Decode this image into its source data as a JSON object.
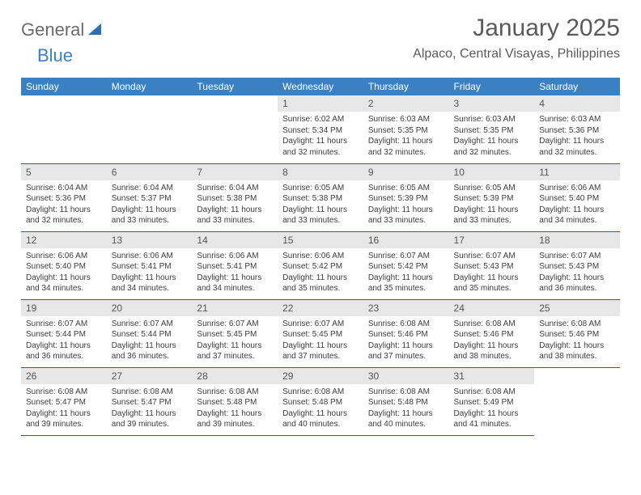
{
  "brand": {
    "part1": "General",
    "part2": "Blue"
  },
  "title": "January 2025",
  "location": "Alpaco, Central Visayas, Philippines",
  "colors": {
    "header_bg": "#3a81c4",
    "header_text": "#ffffff",
    "daynum_bg": "#e7e7e7",
    "daynum_text": "#555555",
    "body_text": "#3c3c3c",
    "row_border": "#2f5f8f",
    "logo_gray": "#6a6a6a",
    "logo_blue": "#3a81c4",
    "title_color": "#5a5a5a",
    "background": "#ffffff"
  },
  "typography": {
    "month_title_fontsize": 30,
    "location_fontsize": 16,
    "dayheader_fontsize": 12,
    "daynum_fontsize": 12,
    "cell_fontsize": 10
  },
  "table": {
    "type": "calendar",
    "columns": [
      "Sunday",
      "Monday",
      "Tuesday",
      "Wednesday",
      "Thursday",
      "Friday",
      "Saturday"
    ],
    "leading_blank_cells": 3,
    "days": [
      {
        "n": "1",
        "sunrise": "6:02 AM",
        "sunset": "5:34 PM",
        "daylight": "11 hours and 32 minutes."
      },
      {
        "n": "2",
        "sunrise": "6:03 AM",
        "sunset": "5:35 PM",
        "daylight": "11 hours and 32 minutes."
      },
      {
        "n": "3",
        "sunrise": "6:03 AM",
        "sunset": "5:35 PM",
        "daylight": "11 hours and 32 minutes."
      },
      {
        "n": "4",
        "sunrise": "6:03 AM",
        "sunset": "5:36 PM",
        "daylight": "11 hours and 32 minutes."
      },
      {
        "n": "5",
        "sunrise": "6:04 AM",
        "sunset": "5:36 PM",
        "daylight": "11 hours and 32 minutes."
      },
      {
        "n": "6",
        "sunrise": "6:04 AM",
        "sunset": "5:37 PM",
        "daylight": "11 hours and 33 minutes."
      },
      {
        "n": "7",
        "sunrise": "6:04 AM",
        "sunset": "5:38 PM",
        "daylight": "11 hours and 33 minutes."
      },
      {
        "n": "8",
        "sunrise": "6:05 AM",
        "sunset": "5:38 PM",
        "daylight": "11 hours and 33 minutes."
      },
      {
        "n": "9",
        "sunrise": "6:05 AM",
        "sunset": "5:39 PM",
        "daylight": "11 hours and 33 minutes."
      },
      {
        "n": "10",
        "sunrise": "6:05 AM",
        "sunset": "5:39 PM",
        "daylight": "11 hours and 33 minutes."
      },
      {
        "n": "11",
        "sunrise": "6:06 AM",
        "sunset": "5:40 PM",
        "daylight": "11 hours and 34 minutes."
      },
      {
        "n": "12",
        "sunrise": "6:06 AM",
        "sunset": "5:40 PM",
        "daylight": "11 hours and 34 minutes."
      },
      {
        "n": "13",
        "sunrise": "6:06 AM",
        "sunset": "5:41 PM",
        "daylight": "11 hours and 34 minutes."
      },
      {
        "n": "14",
        "sunrise": "6:06 AM",
        "sunset": "5:41 PM",
        "daylight": "11 hours and 34 minutes."
      },
      {
        "n": "15",
        "sunrise": "6:06 AM",
        "sunset": "5:42 PM",
        "daylight": "11 hours and 35 minutes."
      },
      {
        "n": "16",
        "sunrise": "6:07 AM",
        "sunset": "5:42 PM",
        "daylight": "11 hours and 35 minutes."
      },
      {
        "n": "17",
        "sunrise": "6:07 AM",
        "sunset": "5:43 PM",
        "daylight": "11 hours and 35 minutes."
      },
      {
        "n": "18",
        "sunrise": "6:07 AM",
        "sunset": "5:43 PM",
        "daylight": "11 hours and 36 minutes."
      },
      {
        "n": "19",
        "sunrise": "6:07 AM",
        "sunset": "5:44 PM",
        "daylight": "11 hours and 36 minutes."
      },
      {
        "n": "20",
        "sunrise": "6:07 AM",
        "sunset": "5:44 PM",
        "daylight": "11 hours and 36 minutes."
      },
      {
        "n": "21",
        "sunrise": "6:07 AM",
        "sunset": "5:45 PM",
        "daylight": "11 hours and 37 minutes."
      },
      {
        "n": "22",
        "sunrise": "6:07 AM",
        "sunset": "5:45 PM",
        "daylight": "11 hours and 37 minutes."
      },
      {
        "n": "23",
        "sunrise": "6:08 AM",
        "sunset": "5:46 PM",
        "daylight": "11 hours and 37 minutes."
      },
      {
        "n": "24",
        "sunrise": "6:08 AM",
        "sunset": "5:46 PM",
        "daylight": "11 hours and 38 minutes."
      },
      {
        "n": "25",
        "sunrise": "6:08 AM",
        "sunset": "5:46 PM",
        "daylight": "11 hours and 38 minutes."
      },
      {
        "n": "26",
        "sunrise": "6:08 AM",
        "sunset": "5:47 PM",
        "daylight": "11 hours and 39 minutes."
      },
      {
        "n": "27",
        "sunrise": "6:08 AM",
        "sunset": "5:47 PM",
        "daylight": "11 hours and 39 minutes."
      },
      {
        "n": "28",
        "sunrise": "6:08 AM",
        "sunset": "5:48 PM",
        "daylight": "11 hours and 39 minutes."
      },
      {
        "n": "29",
        "sunrise": "6:08 AM",
        "sunset": "5:48 PM",
        "daylight": "11 hours and 40 minutes."
      },
      {
        "n": "30",
        "sunrise": "6:08 AM",
        "sunset": "5:48 PM",
        "daylight": "11 hours and 40 minutes."
      },
      {
        "n": "31",
        "sunrise": "6:08 AM",
        "sunset": "5:49 PM",
        "daylight": "11 hours and 41 minutes."
      }
    ],
    "labels": {
      "sunrise": "Sunrise:",
      "sunset": "Sunset:",
      "daylight": "Daylight:"
    }
  }
}
